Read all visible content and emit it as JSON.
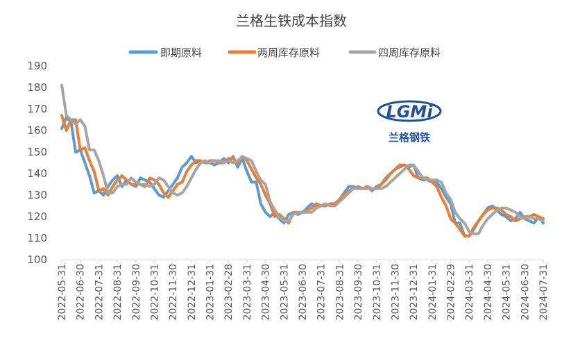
{
  "chart_data": {
    "type": "line",
    "title": "兰格生铁成本指数",
    "xlabel": "",
    "ylabel": "",
    "ylim": [
      100,
      190
    ],
    "yticks": [
      100,
      110,
      120,
      130,
      140,
      150,
      160,
      170,
      180,
      190
    ],
    "x_ticks": [
      "2022-05-31",
      "2022-06-30",
      "2022-07-31",
      "2022-08-31",
      "2022-09-30",
      "2022-10-31",
      "2022-11-30",
      "2022-12-31",
      "2023-01-31",
      "2023-02-28",
      "2023-03-31",
      "2023-04-30",
      "2023-05-31",
      "2023-06-30",
      "2023-07-31",
      "2023-08-31",
      "2023-09-30",
      "2023-10-31",
      "2023-11-30",
      "2023-12-31",
      "2024-01-31",
      "2024-02-29",
      "2024-03-31",
      "2024-04-30",
      "2024-05-31",
      "2024-06-30",
      "2024-07-31"
    ],
    "legend_position": "top",
    "grid": "none",
    "series": [
      {
        "name": "即期原料",
        "color": "#5b9bd5",
        "points": [
          [
            0,
            161
          ],
          [
            0.25,
            166
          ],
          [
            0.5,
            164
          ],
          [
            0.75,
            150
          ],
          [
            1,
            151
          ],
          [
            1.25,
            145
          ],
          [
            1.5,
            139
          ],
          [
            1.75,
            131
          ],
          [
            2,
            132
          ],
          [
            2.25,
            130
          ],
          [
            2.5,
            134
          ],
          [
            2.75,
            137
          ],
          [
            3,
            139
          ],
          [
            3.25,
            134
          ],
          [
            3.5,
            137
          ],
          [
            3.75,
            135
          ],
          [
            4,
            134
          ],
          [
            4.25,
            138
          ],
          [
            4.5,
            137
          ],
          [
            4.75,
            136
          ],
          [
            5,
            133
          ],
          [
            5.25,
            130
          ],
          [
            5.5,
            129
          ],
          [
            5.75,
            132
          ],
          [
            6,
            135
          ],
          [
            6.25,
            138
          ],
          [
            6.5,
            143
          ],
          [
            6.75,
            145
          ],
          [
            7,
            148
          ],
          [
            7.25,
            145
          ],
          [
            7.5,
            146
          ],
          [
            7.75,
            145
          ],
          [
            8,
            145
          ],
          [
            8.25,
            144
          ],
          [
            8.5,
            145
          ],
          [
            8.75,
            147
          ],
          [
            9,
            145
          ],
          [
            9.25,
            148
          ],
          [
            9.5,
            143
          ],
          [
            9.75,
            147
          ],
          [
            10,
            141
          ],
          [
            10.25,
            136
          ],
          [
            10.5,
            136
          ],
          [
            10.75,
            126
          ],
          [
            11,
            122
          ],
          [
            11.25,
            120
          ],
          [
            11.5,
            122
          ],
          [
            11.75,
            119
          ],
          [
            12,
            117
          ],
          [
            12.25,
            121
          ],
          [
            12.5,
            122
          ],
          [
            12.75,
            121
          ],
          [
            13,
            122
          ],
          [
            13.25,
            124
          ],
          [
            13.5,
            126
          ],
          [
            13.75,
            125
          ],
          [
            14,
            125
          ],
          [
            14.25,
            126
          ],
          [
            14.5,
            125
          ],
          [
            14.75,
            125
          ],
          [
            15,
            128
          ],
          [
            15.25,
            131
          ],
          [
            15.5,
            134
          ],
          [
            15.75,
            134
          ],
          [
            16,
            133
          ],
          [
            16.25,
            133
          ],
          [
            16.5,
            134
          ],
          [
            16.75,
            132
          ],
          [
            17,
            134
          ],
          [
            17.25,
            135
          ],
          [
            17.5,
            138
          ],
          [
            17.75,
            140
          ],
          [
            18,
            142
          ],
          [
            18.25,
            143
          ],
          [
            18.5,
            144
          ],
          [
            18.75,
            143
          ],
          [
            19,
            144
          ],
          [
            19.25,
            138
          ],
          [
            19.5,
            137
          ],
          [
            19.75,
            137
          ],
          [
            20,
            136
          ],
          [
            20.25,
            136
          ],
          [
            20.5,
            133
          ],
          [
            20.75,
            129
          ],
          [
            21,
            126
          ],
          [
            21.25,
            117
          ],
          [
            21.5,
            117
          ],
          [
            21.75,
            111
          ],
          [
            22,
            111
          ],
          [
            22.25,
            114
          ],
          [
            22.5,
            118
          ],
          [
            22.75,
            121
          ],
          [
            23,
            124
          ],
          [
            23.25,
            125
          ],
          [
            23.5,
            123
          ],
          [
            23.75,
            121
          ],
          [
            24,
            120
          ],
          [
            24.25,
            118
          ],
          [
            24.5,
            119
          ],
          [
            24.75,
            122
          ],
          [
            25,
            119
          ],
          [
            25.25,
            118
          ],
          [
            25.5,
            117
          ],
          [
            25.75,
            120
          ],
          [
            26,
            117
          ]
        ]
      },
      {
        "name": "两周库存原料",
        "color": "#ed7d31",
        "points": [
          [
            0,
            167
          ],
          [
            0.25,
            160
          ],
          [
            0.5,
            165
          ],
          [
            0.75,
            165
          ],
          [
            1,
            151
          ],
          [
            1.25,
            152
          ],
          [
            1.5,
            146
          ],
          [
            1.75,
            141
          ],
          [
            2,
            132
          ],
          [
            2.25,
            133
          ],
          [
            2.5,
            130
          ],
          [
            2.75,
            134
          ],
          [
            3,
            137
          ],
          [
            3.25,
            139
          ],
          [
            3.5,
            137
          ],
          [
            3.75,
            135
          ],
          [
            4,
            135
          ],
          [
            4.25,
            135
          ],
          [
            4.5,
            134
          ],
          [
            4.75,
            138
          ],
          [
            5,
            137
          ],
          [
            5.25,
            135
          ],
          [
            5.5,
            131
          ],
          [
            5.75,
            129
          ],
          [
            6,
            132
          ],
          [
            6.25,
            135
          ],
          [
            6.5,
            136
          ],
          [
            6.75,
            141
          ],
          [
            7,
            144
          ],
          [
            7.25,
            146
          ],
          [
            7.5,
            146
          ],
          [
            7.75,
            145
          ],
          [
            8,
            146
          ],
          [
            8.25,
            146
          ],
          [
            8.5,
            145
          ],
          [
            8.75,
            145
          ],
          [
            9,
            147
          ],
          [
            9.25,
            147
          ],
          [
            9.5,
            145
          ],
          [
            9.75,
            148
          ],
          [
            10,
            146
          ],
          [
            10.25,
            142
          ],
          [
            10.5,
            138
          ],
          [
            10.75,
            135
          ],
          [
            11,
            130
          ],
          [
            11.25,
            126
          ],
          [
            11.5,
            120
          ],
          [
            11.75,
            121
          ],
          [
            12,
            119
          ],
          [
            12.25,
            117
          ],
          [
            12.5,
            122
          ],
          [
            12.75,
            122
          ],
          [
            13,
            122
          ],
          [
            13.25,
            123
          ],
          [
            13.5,
            124
          ],
          [
            13.75,
            126
          ],
          [
            14,
            125
          ],
          [
            14.25,
            125
          ],
          [
            14.5,
            126
          ],
          [
            14.75,
            126
          ],
          [
            15,
            128
          ],
          [
            15.25,
            130
          ],
          [
            15.5,
            132
          ],
          [
            15.75,
            133
          ],
          [
            16,
            134
          ],
          [
            16.25,
            133
          ],
          [
            16.5,
            134
          ],
          [
            16.75,
            133
          ],
          [
            17,
            133
          ],
          [
            17.25,
            135
          ],
          [
            17.5,
            137
          ],
          [
            17.75,
            140
          ],
          [
            18,
            142
          ],
          [
            18.25,
            144
          ],
          [
            18.5,
            144
          ],
          [
            18.75,
            142
          ],
          [
            19,
            139
          ],
          [
            19.25,
            138
          ],
          [
            19.5,
            138
          ],
          [
            19.75,
            138
          ],
          [
            20,
            136
          ],
          [
            20.25,
            134
          ],
          [
            20.5,
            129
          ],
          [
            20.75,
            125
          ],
          [
            21,
            119
          ],
          [
            21.25,
            117
          ],
          [
            21.5,
            114
          ],
          [
            21.75,
            111
          ],
          [
            22,
            111
          ],
          [
            22.25,
            115
          ],
          [
            22.5,
            118
          ],
          [
            22.75,
            121
          ],
          [
            23,
            123
          ],
          [
            23.25,
            124
          ],
          [
            23.5,
            124
          ],
          [
            23.75,
            123
          ],
          [
            24,
            121
          ],
          [
            24.25,
            120
          ],
          [
            24.5,
            118
          ],
          [
            24.75,
            119
          ],
          [
            25,
            120
          ],
          [
            25.25,
            120
          ],
          [
            25.5,
            121
          ],
          [
            25.75,
            120
          ],
          [
            26,
            119
          ]
        ]
      },
      {
        "name": "四周库存原料",
        "color": "#a5a5a5",
        "points": [
          [
            0,
            181
          ],
          [
            0.25,
            167
          ],
          [
            0.5,
            165
          ],
          [
            0.75,
            163
          ],
          [
            1,
            165
          ],
          [
            1.25,
            162
          ],
          [
            1.5,
            151
          ],
          [
            1.75,
            151
          ],
          [
            2,
            146
          ],
          [
            2.25,
            139
          ],
          [
            2.5,
            131
          ],
          [
            2.75,
            131
          ],
          [
            3,
            134
          ],
          [
            3.25,
            135
          ],
          [
            3.5,
            135
          ],
          [
            3.75,
            138
          ],
          [
            4,
            136
          ],
          [
            4.25,
            135
          ],
          [
            4.5,
            135
          ],
          [
            4.75,
            134
          ],
          [
            5,
            135
          ],
          [
            5.25,
            138
          ],
          [
            5.5,
            137
          ],
          [
            5.75,
            134
          ],
          [
            6,
            131
          ],
          [
            6.25,
            130
          ],
          [
            6.5,
            131
          ],
          [
            6.75,
            134
          ],
          [
            7,
            138
          ],
          [
            7.25,
            142
          ],
          [
            7.5,
            145
          ],
          [
            7.75,
            146
          ],
          [
            8,
            145
          ],
          [
            8.25,
            146
          ],
          [
            8.5,
            146
          ],
          [
            8.75,
            145
          ],
          [
            9,
            146
          ],
          [
            9.25,
            145
          ],
          [
            9.5,
            146
          ],
          [
            9.75,
            148
          ],
          [
            10,
            147
          ],
          [
            10.25,
            146
          ],
          [
            10.5,
            141
          ],
          [
            10.75,
            137
          ],
          [
            11,
            135
          ],
          [
            11.25,
            127
          ],
          [
            11.5,
            123
          ],
          [
            11.75,
            120
          ],
          [
            12,
            118
          ],
          [
            12.25,
            118
          ],
          [
            12.5,
            121
          ],
          [
            12.75,
            122
          ],
          [
            13,
            122
          ],
          [
            13.25,
            122
          ],
          [
            13.5,
            122
          ],
          [
            13.75,
            124
          ],
          [
            14,
            125
          ],
          [
            14.25,
            126
          ],
          [
            14.5,
            125
          ],
          [
            14.75,
            125
          ],
          [
            15,
            127
          ],
          [
            15.25,
            129
          ],
          [
            15.5,
            131
          ],
          [
            15.75,
            133
          ],
          [
            16,
            133
          ],
          [
            16.25,
            133
          ],
          [
            16.5,
            133
          ],
          [
            16.75,
            133
          ],
          [
            17,
            133
          ],
          [
            17.25,
            133
          ],
          [
            17.5,
            134
          ],
          [
            17.75,
            136
          ],
          [
            18,
            138
          ],
          [
            18.25,
            140
          ],
          [
            18.5,
            142
          ],
          [
            18.75,
            144
          ],
          [
            19,
            144
          ],
          [
            19.25,
            141
          ],
          [
            19.5,
            138
          ],
          [
            19.75,
            137
          ],
          [
            20,
            137
          ],
          [
            20.25,
            137
          ],
          [
            20.5,
            136
          ],
          [
            20.75,
            131
          ],
          [
            21,
            128
          ],
          [
            21.25,
            122
          ],
          [
            21.5,
            119
          ],
          [
            21.75,
            117
          ],
          [
            22,
            113
          ],
          [
            22.25,
            112
          ],
          [
            22.5,
            112
          ],
          [
            22.75,
            116
          ],
          [
            23,
            119
          ],
          [
            23.25,
            121
          ],
          [
            23.5,
            123
          ],
          [
            23.75,
            124
          ],
          [
            24,
            124
          ],
          [
            24.25,
            123
          ],
          [
            24.5,
            122
          ],
          [
            24.75,
            120
          ],
          [
            25,
            119
          ],
          [
            25.25,
            120
          ],
          [
            25.5,
            119
          ],
          [
            25.75,
            119
          ],
          [
            26,
            118
          ]
        ]
      }
    ]
  },
  "logo": {
    "mark": "LGMi",
    "chinese": "兰格钢铁",
    "color": "#1f4fa0"
  }
}
